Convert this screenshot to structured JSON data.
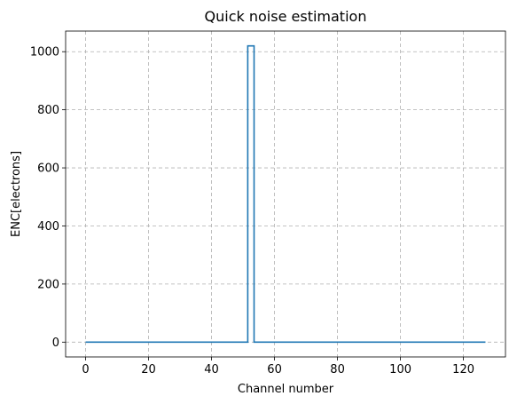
{
  "chart_data": {
    "type": "line",
    "drawstyle": "steps-mid",
    "title": "Quick noise estimation",
    "xlabel": "Channel number",
    "ylabel": "ENC[electrons]",
    "xlim": [
      -6.35,
      133.35
    ],
    "ylim": [
      -51,
      1071
    ],
    "xticks": [
      0,
      20,
      40,
      60,
      80,
      100,
      120
    ],
    "yticks": [
      0,
      200,
      400,
      600,
      800,
      1000
    ],
    "grid": true,
    "series": [
      {
        "color": "#1f77b4",
        "x_range": [
          0,
          127
        ],
        "baseline": 0,
        "nonzero": [
          {
            "x": 52,
            "y": 1020
          },
          {
            "x": 53,
            "y": 1020
          }
        ]
      }
    ]
  }
}
